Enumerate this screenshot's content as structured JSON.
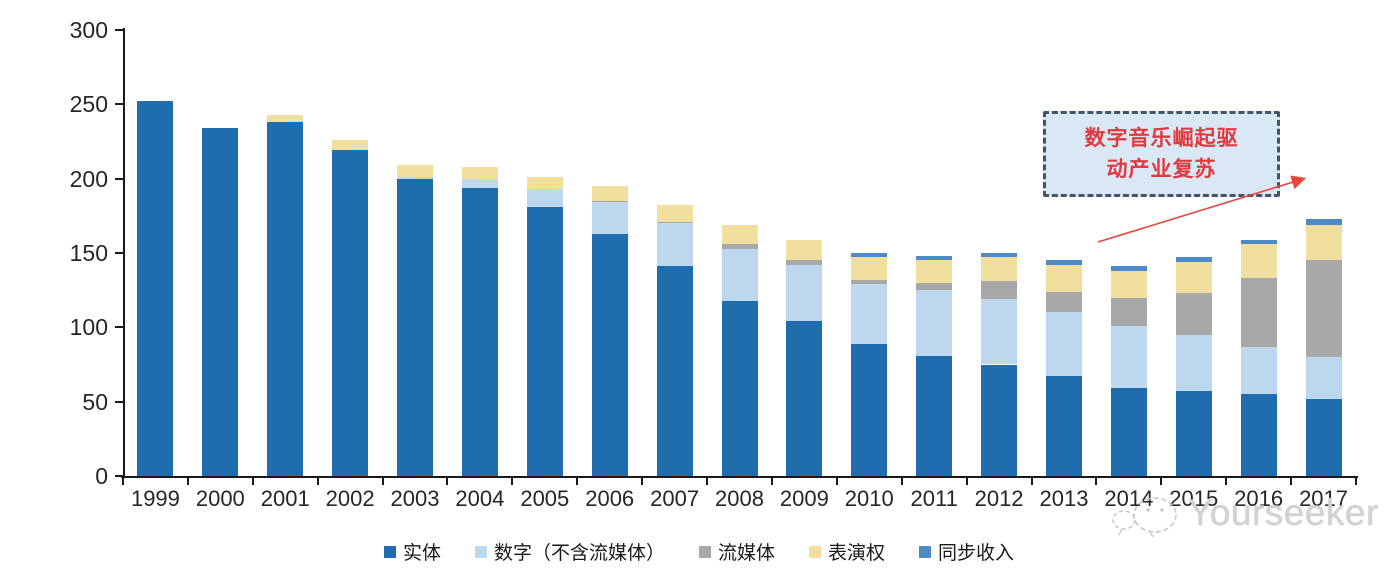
{
  "chart_data": {
    "type": "bar",
    "stacked": true,
    "title": "",
    "xlabel": "",
    "ylabel": "",
    "ylim": [
      0,
      300
    ],
    "yticks": [
      0,
      50,
      100,
      150,
      200,
      250,
      300
    ],
    "grid": false,
    "legend_position": "bottom",
    "categories": [
      "1999",
      "2000",
      "2001",
      "2002",
      "2003",
      "2004",
      "2005",
      "2006",
      "2007",
      "2008",
      "2009",
      "2010",
      "2011",
      "2012",
      "2013",
      "2014",
      "2015",
      "2016",
      "2017"
    ],
    "series": [
      {
        "name": "实体",
        "color": "#1F6DAE",
        "values": [
          252,
          234,
          238,
          219,
          200,
          194,
          181,
          163,
          141,
          118,
          104,
          89,
          81,
          75,
          67,
          59,
          57,
          55,
          52
        ]
      },
      {
        "name": "数字（不含流媒体）",
        "color": "#BDD7EE",
        "values": [
          0,
          0,
          0,
          0,
          1,
          6,
          12,
          21,
          29,
          35,
          38,
          40,
          44,
          44,
          43,
          42,
          38,
          32,
          28
        ]
      },
      {
        "name": "流媒体",
        "color": "#A8A8A8",
        "values": [
          0,
          0,
          0,
          0,
          0,
          0,
          0,
          1,
          1,
          3,
          3,
          3,
          5,
          12,
          14,
          19,
          28,
          46,
          65
        ]
      },
      {
        "name": "表演权",
        "color": "#F0DF9E",
        "values": [
          0,
          0,
          5,
          7,
          8,
          8,
          8,
          10,
          11,
          13,
          14,
          15,
          15,
          16,
          18,
          18,
          21,
          23,
          24
        ]
      },
      {
        "name": "同步收入",
        "color": "#4E8AC8",
        "values": [
          0,
          0,
          0,
          0,
          0,
          0,
          0,
          0,
          0,
          0,
          0,
          3,
          3,
          3,
          3,
          3,
          3,
          3,
          4
        ]
      }
    ]
  },
  "annotation": {
    "line1": "数字音乐崛起驱",
    "line2": "动产业复苏",
    "text_color": "#E0393E",
    "box_border_color": "#44546A",
    "box_fill_color": "#DAE7F5",
    "arrow_color": "#E8453C"
  },
  "watermark": {
    "text": "Yourseeker"
  }
}
